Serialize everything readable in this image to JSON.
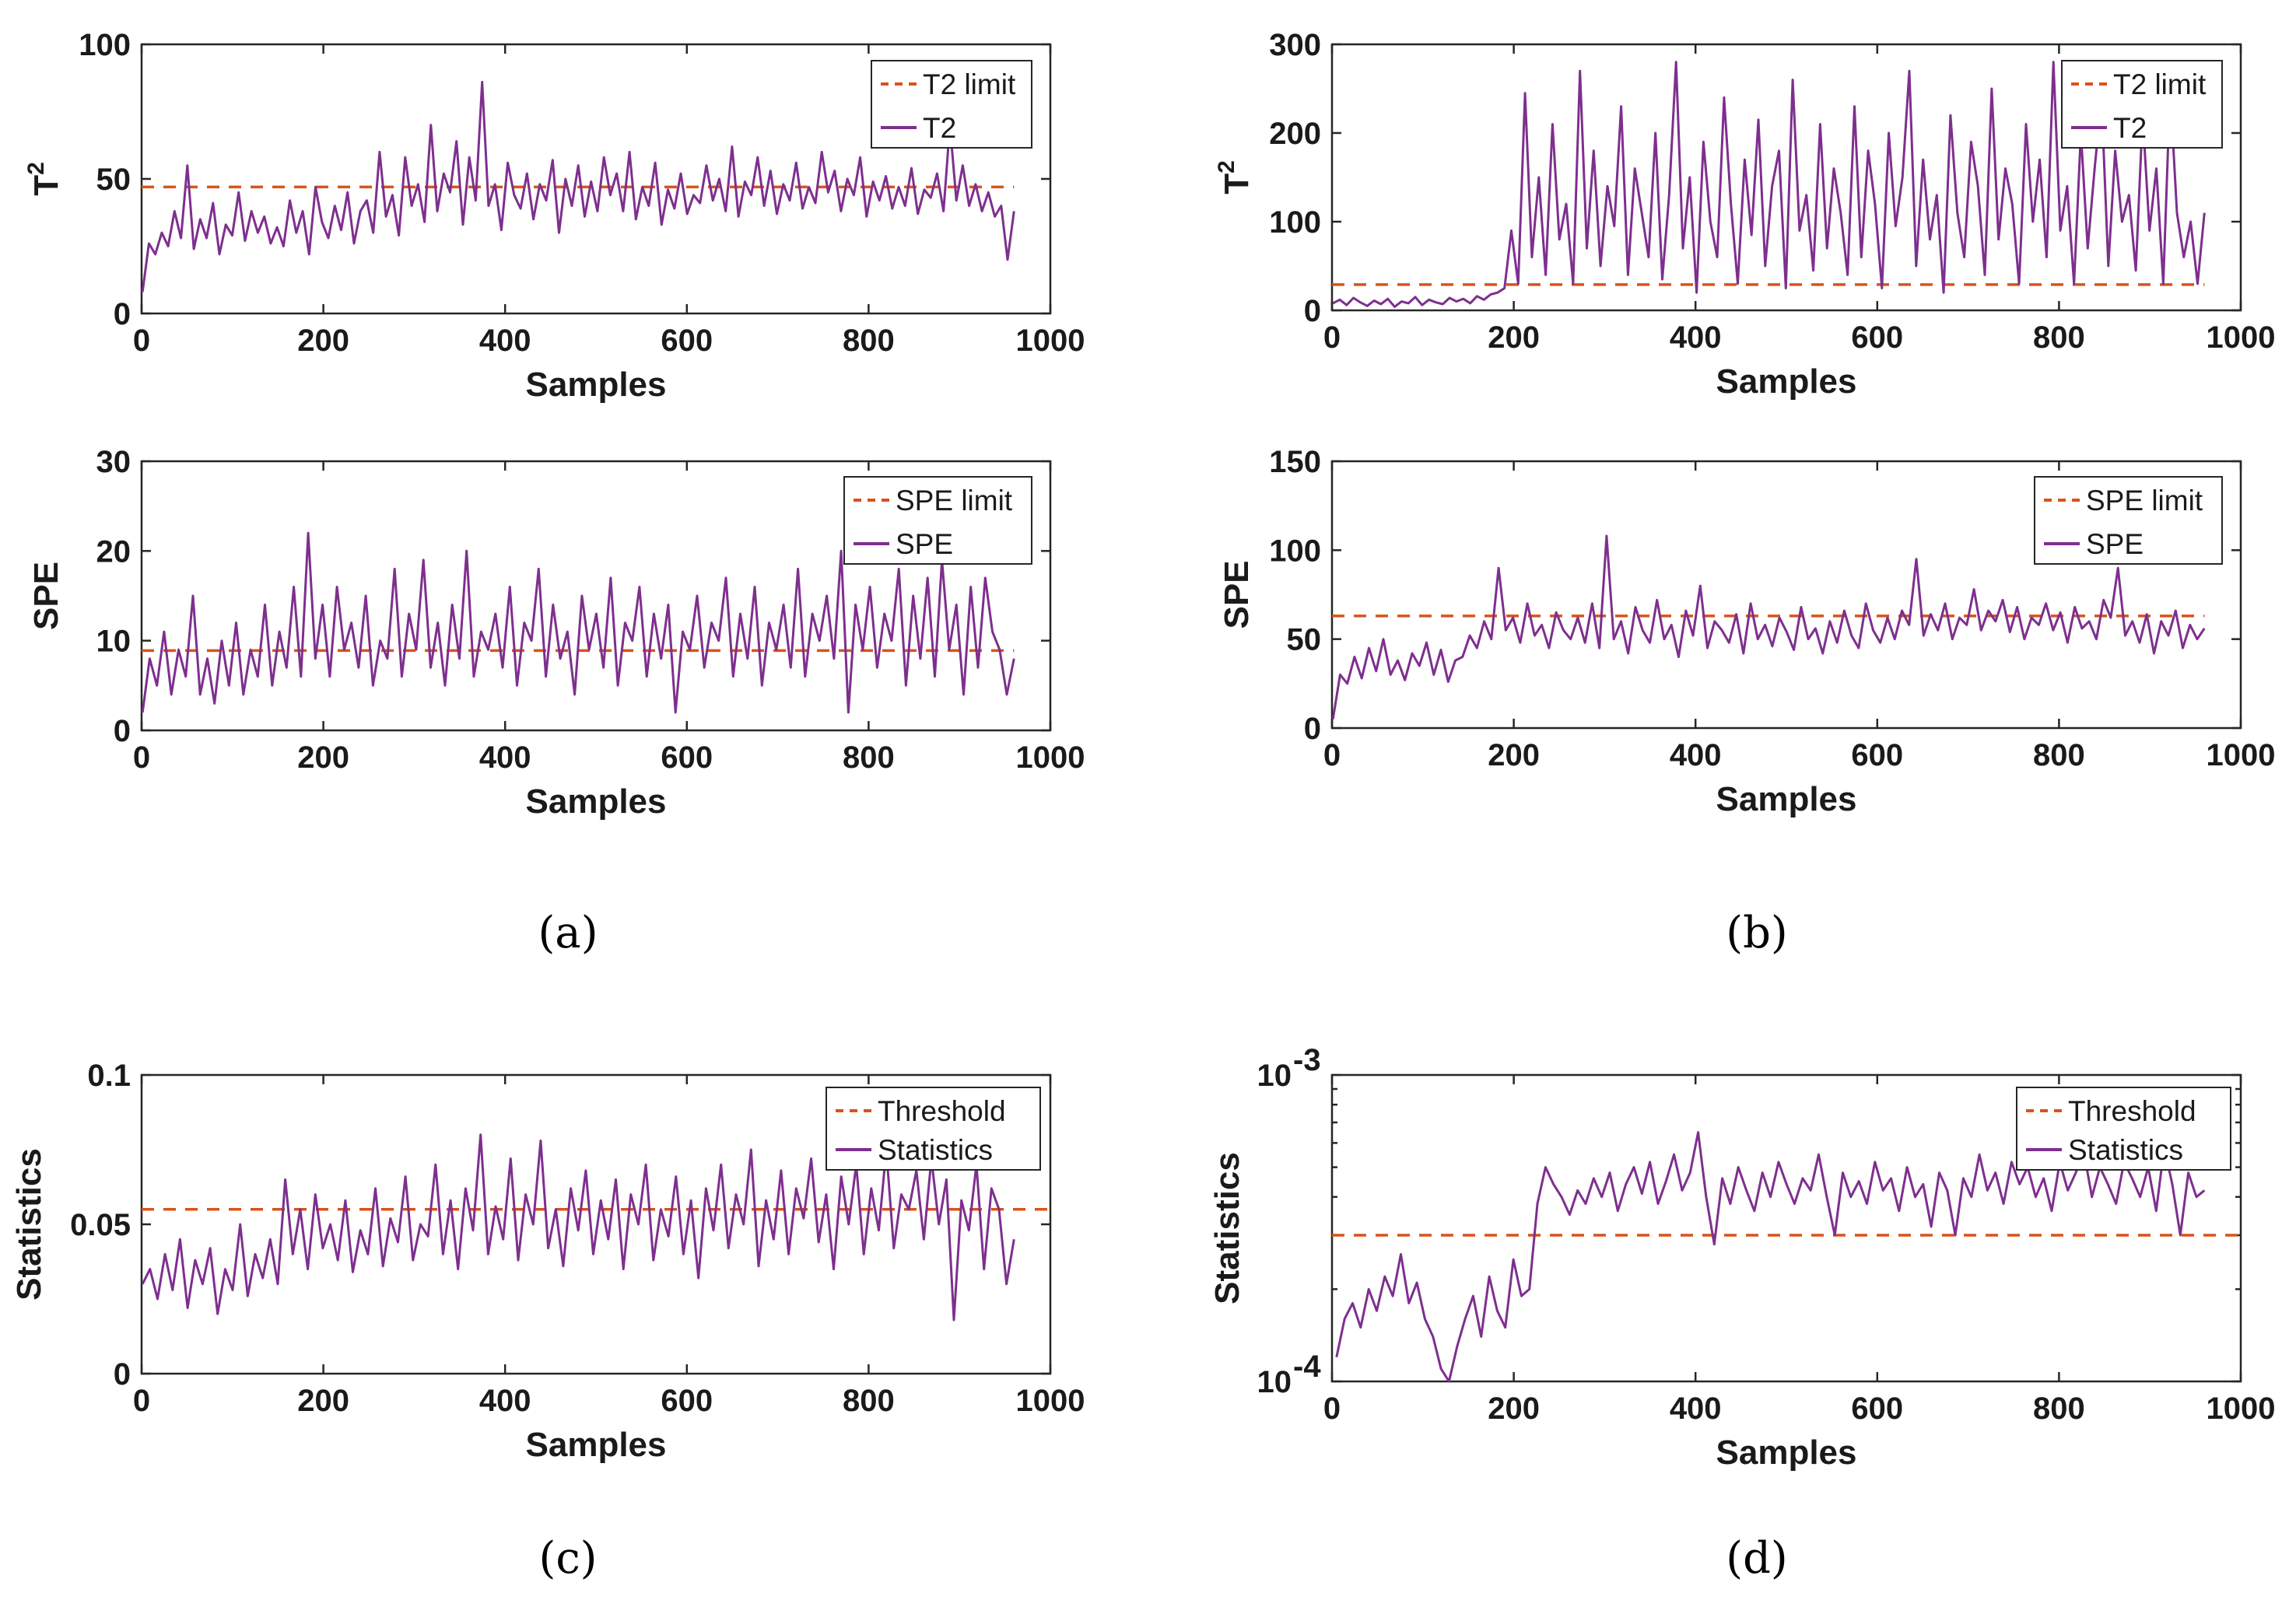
{
  "colors": {
    "series": "#7e2f8e",
    "limit": "#d95319"
  },
  "captions": [
    "(a)",
    "(b)",
    "(c)",
    "(d)"
  ],
  "chart_data": [
    {
      "id": "a-top",
      "panel": "a",
      "type": "line",
      "yscale": "linear",
      "xlabel": "Samples",
      "ylabel": "T2",
      "xlim": [
        0,
        1000
      ],
      "ylim": [
        0,
        100
      ],
      "xticks": [
        "0",
        "200",
        "400",
        "600",
        "800",
        "1000"
      ],
      "yticks": [
        "0",
        "50",
        "100"
      ],
      "legend_position": "top-right",
      "series": [
        {
          "name": "T2 limit",
          "style": "dashed",
          "color_key": "limit",
          "x": [
            0,
            960
          ],
          "values": [
            47,
            47
          ]
        },
        {
          "name": "T2",
          "style": "solid",
          "color_key": "series",
          "x_start": 1,
          "x_end": 960,
          "values": [
            8,
            26,
            22,
            30,
            25,
            38,
            28,
            55,
            24,
            35,
            28,
            41,
            22,
            33,
            29,
            45,
            27,
            38,
            30,
            36,
            26,
            32,
            25,
            42,
            30,
            38,
            22,
            47,
            34,
            28,
            40,
            31,
            45,
            26,
            38,
            42,
            30,
            60,
            36,
            44,
            29,
            58,
            40,
            48,
            34,
            70,
            38,
            52,
            45,
            64,
            33,
            58,
            42,
            86,
            40,
            48,
            31,
            56,
            44,
            39,
            52,
            35,
            48,
            42,
            57,
            30,
            50,
            40,
            55,
            36,
            49,
            38,
            58,
            44,
            52,
            38,
            60,
            35,
            47,
            40,
            56,
            33,
            46,
            39,
            52,
            37,
            44,
            41,
            55,
            42,
            50,
            38,
            62,
            36,
            49,
            44,
            58,
            40,
            53,
            37,
            48,
            42,
            56,
            39,
            47,
            41,
            60,
            45,
            53,
            38,
            50,
            44,
            58,
            36,
            49,
            42,
            51,
            39,
            47,
            40,
            54,
            37,
            46,
            43,
            52,
            38,
            70,
            42,
            55,
            40,
            48,
            38,
            45,
            36,
            40,
            20,
            38
          ]
        }
      ]
    },
    {
      "id": "a-bottom",
      "panel": "a",
      "type": "line",
      "yscale": "linear",
      "xlabel": "Samples",
      "ylabel": "SPE",
      "xlim": [
        0,
        1000
      ],
      "ylim": [
        0,
        30
      ],
      "xticks": [
        "0",
        "200",
        "400",
        "600",
        "800",
        "1000"
      ],
      "yticks": [
        "0",
        "10",
        "20",
        "30"
      ],
      "legend_position": "top-right",
      "series": [
        {
          "name": "SPE limit",
          "style": "dashed",
          "color_key": "limit",
          "x": [
            0,
            960
          ],
          "values": [
            8.9,
            8.9
          ]
        },
        {
          "name": "SPE",
          "style": "solid",
          "color_key": "series",
          "x_start": 1,
          "x_end": 960,
          "values": [
            2,
            8,
            5,
            11,
            4,
            9,
            6,
            15,
            4,
            8,
            3,
            10,
            5,
            12,
            4,
            9,
            6,
            14,
            5,
            11,
            7,
            16,
            6,
            22,
            8,
            14,
            6,
            16,
            9,
            12,
            7,
            15,
            5,
            10,
            8,
            18,
            6,
            13,
            9,
            19,
            7,
            12,
            5,
            14,
            8,
            20,
            6,
            11,
            9,
            13,
            7,
            16,
            5,
            12,
            10,
            18,
            6,
            14,
            8,
            11,
            4,
            15,
            9,
            13,
            7,
            17,
            5,
            12,
            10,
            16,
            6,
            13,
            8,
            14,
            2,
            11,
            9,
            15,
            7,
            12,
            10,
            17,
            6,
            13,
            8,
            16,
            5,
            12,
            9,
            14,
            7,
            18,
            6,
            13,
            10,
            15,
            8,
            20,
            2,
            14,
            9,
            16,
            7,
            13,
            10,
            18,
            5,
            15,
            8,
            17,
            6,
            19,
            9,
            14,
            4,
            16,
            7,
            17,
            11,
            9,
            4,
            8
          ]
        }
      ]
    },
    {
      "id": "b-top",
      "panel": "b",
      "type": "line",
      "yscale": "linear",
      "xlabel": "Samples",
      "ylabel": "T2",
      "xlim": [
        0,
        1000
      ],
      "ylim": [
        0,
        300
      ],
      "xticks": [
        "0",
        "200",
        "400",
        "600",
        "800",
        "1000"
      ],
      "yticks": [
        "0",
        "100",
        "200",
        "300"
      ],
      "legend_position": "top-right",
      "series": [
        {
          "name": "T2 limit",
          "style": "dashed",
          "color_key": "limit",
          "x": [
            0,
            960
          ],
          "values": [
            29,
            29
          ]
        },
        {
          "name": "T2",
          "style": "solid",
          "color_key": "series",
          "x_start": 1,
          "x_end": 960,
          "values": [
            8,
            12,
            6,
            14,
            9,
            5,
            11,
            7,
            13,
            4,
            10,
            8,
            15,
            6,
            12,
            9,
            7,
            14,
            10,
            13,
            8,
            16,
            12,
            18,
            20,
            25,
            90,
            30,
            245,
            60,
            150,
            40,
            210,
            80,
            120,
            30,
            270,
            70,
            180,
            50,
            140,
            95,
            230,
            40,
            160,
            110,
            60,
            200,
            35,
            130,
            280,
            70,
            150,
            20,
            190,
            100,
            60,
            240,
            120,
            30,
            170,
            85,
            215,
            50,
            140,
            180,
            25,
            260,
            90,
            130,
            45,
            210,
            70,
            160,
            110,
            40,
            230,
            60,
            180,
            120,
            25,
            200,
            95,
            150,
            270,
            50,
            170,
            80,
            130,
            20,
            220,
            110,
            60,
            190,
            140,
            40,
            250,
            80,
            160,
            120,
            30,
            210,
            100,
            170,
            60,
            280,
            90,
            140,
            30,
            200,
            70,
            160,
            240,
            50,
            180,
            100,
            130,
            45,
            220,
            90,
            160,
            30,
            250,
            110,
            60,
            100,
            30,
            110
          ]
        }
      ]
    },
    {
      "id": "b-bottom",
      "panel": "b",
      "type": "line",
      "yscale": "linear",
      "xlabel": "Samples",
      "ylabel": "SPE",
      "xlim": [
        0,
        1000
      ],
      "ylim": [
        0,
        150
      ],
      "xticks": [
        "0",
        "200",
        "400",
        "600",
        "800",
        "1000"
      ],
      "yticks": [
        "0",
        "50",
        "100",
        "150"
      ],
      "legend_position": "top-right",
      "series": [
        {
          "name": "SPE limit",
          "style": "dashed",
          "color_key": "limit",
          "x": [
            0,
            960
          ],
          "values": [
            63,
            63
          ]
        },
        {
          "name": "SPE",
          "style": "solid",
          "color_key": "series",
          "x_start": 1,
          "x_end": 960,
          "values": [
            5,
            30,
            25,
            40,
            28,
            45,
            32,
            50,
            30,
            38,
            27,
            42,
            35,
            48,
            30,
            44,
            26,
            38,
            40,
            52,
            45,
            60,
            50,
            90,
            55,
            62,
            48,
            70,
            52,
            58,
            45,
            65,
            55,
            50,
            62,
            48,
            70,
            45,
            108,
            50,
            60,
            42,
            68,
            55,
            48,
            72,
            50,
            58,
            40,
            66,
            52,
            80,
            45,
            60,
            55,
            48,
            64,
            42,
            70,
            50,
            58,
            46,
            62,
            54,
            44,
            68,
            50,
            56,
            42,
            60,
            48,
            66,
            52,
            45,
            70,
            55,
            48,
            62,
            50,
            66,
            58,
            95,
            52,
            64,
            55,
            70,
            50,
            62,
            58,
            78,
            55,
            66,
            60,
            72,
            54,
            68,
            50,
            62,
            58,
            70,
            55,
            65,
            48,
            68,
            56,
            60,
            50,
            72,
            62,
            90,
            52,
            60,
            48,
            64,
            42,
            60,
            52,
            66,
            45,
            58,
            50,
            56
          ]
        }
      ]
    },
    {
      "id": "c",
      "panel": "c",
      "type": "line",
      "yscale": "linear",
      "xlabel": "Samples",
      "ylabel": "Statistics",
      "xlim": [
        0,
        1000
      ],
      "ylim": [
        0,
        0.1
      ],
      "xticks": [
        "0",
        "200",
        "400",
        "600",
        "800",
        "1000"
      ],
      "yticks": [
        "0",
        "0.05",
        "0.1"
      ],
      "legend_position": "top-right",
      "series": [
        {
          "name": "Threshold",
          "style": "dashed",
          "color_key": "limit",
          "x": [
            0,
            1000
          ],
          "values": [
            0.055,
            0.055
          ]
        },
        {
          "name": "Statistics",
          "style": "solid",
          "color_key": "series",
          "x_start": 1,
          "x_end": 960,
          "values": [
            0.03,
            0.035,
            0.025,
            0.04,
            0.028,
            0.045,
            0.022,
            0.038,
            0.03,
            0.042,
            0.02,
            0.035,
            0.028,
            0.05,
            0.026,
            0.04,
            0.032,
            0.045,
            0.03,
            0.065,
            0.04,
            0.055,
            0.035,
            0.06,
            0.042,
            0.05,
            0.038,
            0.058,
            0.034,
            0.048,
            0.04,
            0.062,
            0.036,
            0.052,
            0.044,
            0.066,
            0.038,
            0.05,
            0.046,
            0.07,
            0.04,
            0.058,
            0.035,
            0.062,
            0.048,
            0.08,
            0.04,
            0.056,
            0.045,
            0.072,
            0.038,
            0.06,
            0.05,
            0.078,
            0.042,
            0.055,
            0.036,
            0.062,
            0.048,
            0.068,
            0.04,
            0.058,
            0.045,
            0.065,
            0.035,
            0.06,
            0.05,
            0.07,
            0.038,
            0.055,
            0.046,
            0.066,
            0.04,
            0.058,
            0.032,
            0.062,
            0.048,
            0.07,
            0.042,
            0.06,
            0.05,
            0.075,
            0.036,
            0.058,
            0.045,
            0.068,
            0.04,
            0.062,
            0.052,
            0.072,
            0.044,
            0.06,
            0.035,
            0.066,
            0.05,
            0.07,
            0.04,
            0.062,
            0.048,
            0.075,
            0.042,
            0.06,
            0.055,
            0.068,
            0.045,
            0.072,
            0.05,
            0.065,
            0.018,
            0.058,
            0.048,
            0.07,
            0.035,
            0.062,
            0.055,
            0.03,
            0.045
          ]
        }
      ]
    },
    {
      "id": "d",
      "panel": "d",
      "type": "line",
      "yscale": "log",
      "xlabel": "Samples",
      "ylabel": "Statistics",
      "xlim": [
        0,
        1000
      ],
      "ylim": [
        0.0001,
        0.001
      ],
      "xticks": [
        "0",
        "200",
        "400",
        "600",
        "800",
        "1000"
      ],
      "yticks": [
        {
          "base": "10",
          "exp": "-4"
        },
        {
          "base": "10",
          "exp": "-3"
        }
      ],
      "legend_position": "top-right",
      "series": [
        {
          "name": "Threshold",
          "style": "dashed",
          "color_key": "limit",
          "x": [
            0,
            1000
          ],
          "values": [
            0.0003,
            0.0003
          ]
        },
        {
          "name": "Statistics",
          "style": "solid",
          "color_key": "series",
          "x_start": 5,
          "x_end": 960,
          "values": [
            0.00012,
            0.00016,
            0.00018,
            0.00015,
            0.0002,
            0.00017,
            0.00022,
            0.00019,
            0.00026,
            0.00018,
            0.00021,
            0.00016,
            0.00014,
            0.00011,
            0.0001,
            0.00013,
            0.00016,
            0.00019,
            0.00014,
            0.00022,
            0.00017,
            0.00015,
            0.00025,
            0.00019,
            0.0002,
            0.00038,
            0.0005,
            0.00044,
            0.0004,
            0.00035,
            0.00042,
            0.00038,
            0.00046,
            0.0004,
            0.00048,
            0.00036,
            0.00044,
            0.0005,
            0.00041,
            0.00052,
            0.00038,
            0.00045,
            0.00055,
            0.00042,
            0.00048,
            0.00065,
            0.0004,
            0.00028,
            0.00046,
            0.00038,
            0.0005,
            0.00042,
            0.00036,
            0.00048,
            0.0004,
            0.00052,
            0.00044,
            0.00038,
            0.00046,
            0.00042,
            0.00055,
            0.0004,
            0.0003,
            0.00048,
            0.0004,
            0.00045,
            0.00038,
            0.00052,
            0.00042,
            0.00046,
            0.00036,
            0.0005,
            0.0004,
            0.00044,
            0.00032,
            0.00048,
            0.00042,
            0.0003,
            0.00046,
            0.0004,
            0.00055,
            0.00042,
            0.00048,
            0.00038,
            0.00052,
            0.00044,
            0.0005,
            0.0004,
            0.00046,
            0.00036,
            0.00052,
            0.00042,
            0.00048,
            0.00056,
            0.0004,
            0.0005,
            0.00044,
            0.00038,
            0.00052,
            0.00046,
            0.0004,
            0.0005,
            0.00036,
            0.00058,
            0.00044,
            0.0003,
            0.00048,
            0.0004,
            0.00042
          ]
        }
      ]
    }
  ]
}
